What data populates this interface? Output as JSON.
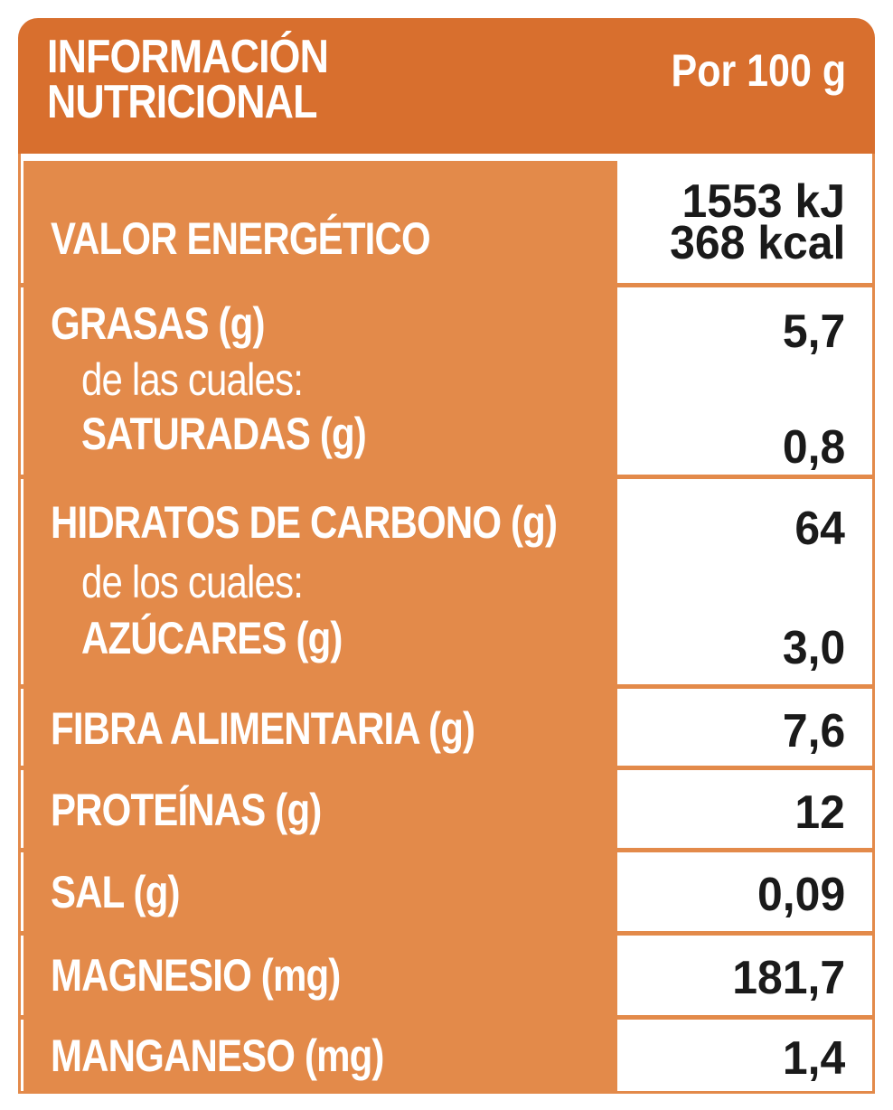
{
  "header": {
    "title": "INFORMACIÓN\nNUTRICIONAL",
    "per": "Por 100 g"
  },
  "rows": {
    "energy": {
      "label": "VALOR ENERGÉTICO",
      "value_kj": "1553 kJ",
      "value_kcal": "368 kcal"
    },
    "fat": {
      "label": "GRASAS (g)",
      "value": "5,7",
      "sub_intro": "de las cuales:",
      "sub_label": "SATURADAS (g)",
      "sub_value": "0,8"
    },
    "carbs": {
      "label": "HIDRATOS DE CARBONO (g)",
      "value": "64",
      "sub_intro": "de los cuales:",
      "sub_label": "AZÚCARES (g)",
      "sub_value": "3,0"
    },
    "fiber": {
      "label": "FIBRA ALIMENTARIA (g)",
      "value": "7,6"
    },
    "protein": {
      "label": "PROTEÍNAS (g)",
      "value": "12"
    },
    "salt": {
      "label": "SAL (g)",
      "value": "0,09"
    },
    "magnesium": {
      "label": "MAGNESIO (mg)",
      "value": "181,7"
    },
    "manganese": {
      "label": "MANGANESO (mg)",
      "value": "1,4"
    }
  },
  "colors": {
    "header": "#d86f2e",
    "label_cell": "#e38a4a",
    "value_text": "#1a1a1a"
  }
}
